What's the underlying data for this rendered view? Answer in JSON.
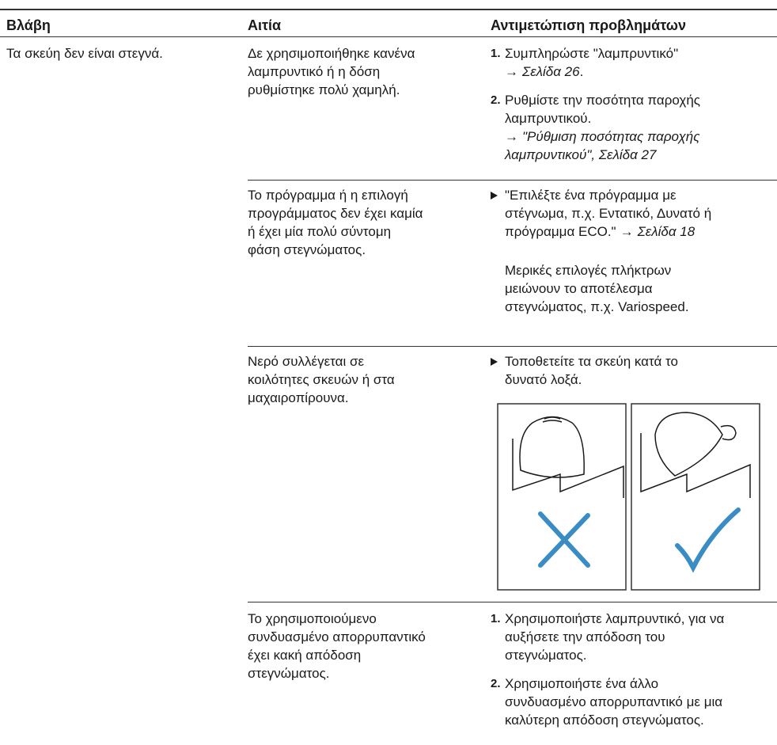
{
  "header": {
    "col1": "Βλάβη",
    "col2": "Αιτία",
    "col3": "Αντιμετώπιση προβλημάτων"
  },
  "fault": "Τα σκεύη δεν είναι στεγνά.",
  "rows": [
    {
      "cause": [
        "Δε χρησιμοποιήθηκε κανένα",
        "λαμπρυντικό ή η δόση",
        "ρυθμίστηκε πολύ χαμηλή."
      ],
      "remedy": [
        {
          "marker": "1.",
          "lines": [
            [
              {
                "text": "Συμπληρώστε \"λαμπρυντικό\""
              }
            ],
            [
              {
                "text": "→"
              },
              {
                "text": "Σελίδα 26",
                "italic": true
              },
              {
                "text": "."
              }
            ]
          ]
        },
        {
          "marker": "2.",
          "lines": [
            [
              {
                "text": "Ρυθμίστε την ποσότητα παροχής"
              }
            ],
            [
              {
                "text": "λαμπρυντικού."
              }
            ],
            [
              {
                "text": "→"
              },
              {
                "text": "\"Ρύθμιση ποσότητας παροχής",
                "italic": true
              }
            ],
            [
              {
                "text": "λαμπρυντικού\", Σελίδα 27",
                "italic": true
              }
            ]
          ]
        }
      ]
    },
    {
      "cause": [
        "Το πρόγραμμα ή η επιλογή",
        "προγράμματος δεν έχει καμία",
        "ή έχει μία πολύ σύντομη",
        "φάση στεγνώματος."
      ],
      "remedy": [
        {
          "bullet": true,
          "lines": [
            [
              {
                "text": "\"Επιλέξτε ένα πρόγραμμα με"
              }
            ],
            [
              {
                "text": "στέγνωμα, π.χ. Εντατικό, Δυνατό ή"
              }
            ],
            [
              {
                "text": "πρόγραμμα ECO.\""
              },
              {
                "text": "→"
              },
              {
                "text": "Σελίδα 18",
                "italic": true
              }
            ]
          ]
        },
        {
          "lines": [
            [
              {
                "text": "Μερικές επιλογές πλήκτρων"
              }
            ],
            [
              {
                "text": "μειώνουν το αποτέλεσμα"
              }
            ],
            [
              {
                "text": "στεγνώματος, π.χ. Variospeed."
              }
            ]
          ]
        }
      ]
    },
    {
      "cause": [
        "Νερό συλλέγεται σε",
        "κοιλότητες σκευών ή στα",
        "μαχαιροπίρουνα."
      ],
      "remedy": [
        {
          "bullet": true,
          "lines": [
            [
              {
                "text": "Τοποθετείτε τα σκεύη κατά το"
              }
            ],
            [
              {
                "text": "δυνατό λοξά."
              }
            ]
          ]
        }
      ]
    },
    {
      "cause": [
        "Το χρησιμοποιούμενο",
        "συνδυασμένο απορρυπαντικό",
        "έχει κακή απόδοση",
        "στεγνώματος."
      ],
      "remedy": [
        {
          "marker": "1.",
          "lines": [
            [
              {
                "text": "Χρησιμοποιήστε λαμπρυντικό, για να"
              }
            ],
            [
              {
                "text": "αυξήσετε την απόδοση του"
              }
            ],
            [
              {
                "text": "στεγνώματος."
              }
            ]
          ]
        },
        {
          "marker": "2.",
          "lines": [
            [
              {
                "text": "Χρησιμοποιήστε ένα άλλο"
              }
            ],
            [
              {
                "text": "συνδυασμένο απορρυπαντικό με μια"
              }
            ],
            [
              {
                "text": "καλύτερη απόδοση στεγνώματος."
              }
            ]
          ]
        }
      ]
    }
  ]
}
